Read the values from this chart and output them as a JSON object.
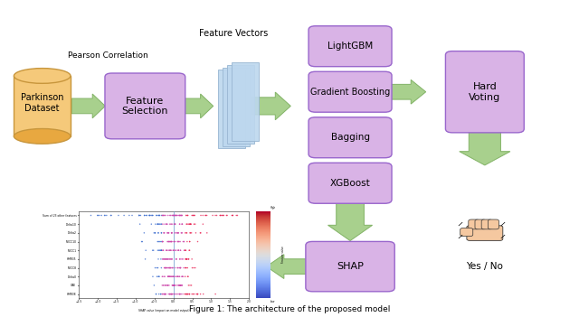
{
  "title": "Figure 1: The architecture of the proposed model",
  "bg_color": "#ffffff",
  "arrow_color": "#a8d08d",
  "arrow_edge": "#82b366",
  "box_face": "#d9b3e6",
  "box_edge": "#9966cc",
  "cyl_face": "#f5c97a",
  "cyl_edge": "#c8963c",
  "cyl_dark": "#e8a840",
  "fv_face": "#bdd7ee",
  "fv_edge": "#9ab7d3",
  "pearson_label": "Pearson Correlation",
  "fv_label": "Feature Vectors",
  "caption": "Figure 1: The architecture of the proposed model",
  "features": [
    "HMR38",
    "GAE",
    "Delta0",
    "MFCC8",
    "HMR35",
    "MFCC1",
    "MFCC10",
    "Delta2",
    "Delta10",
    "Sum of 23 other features"
  ]
}
